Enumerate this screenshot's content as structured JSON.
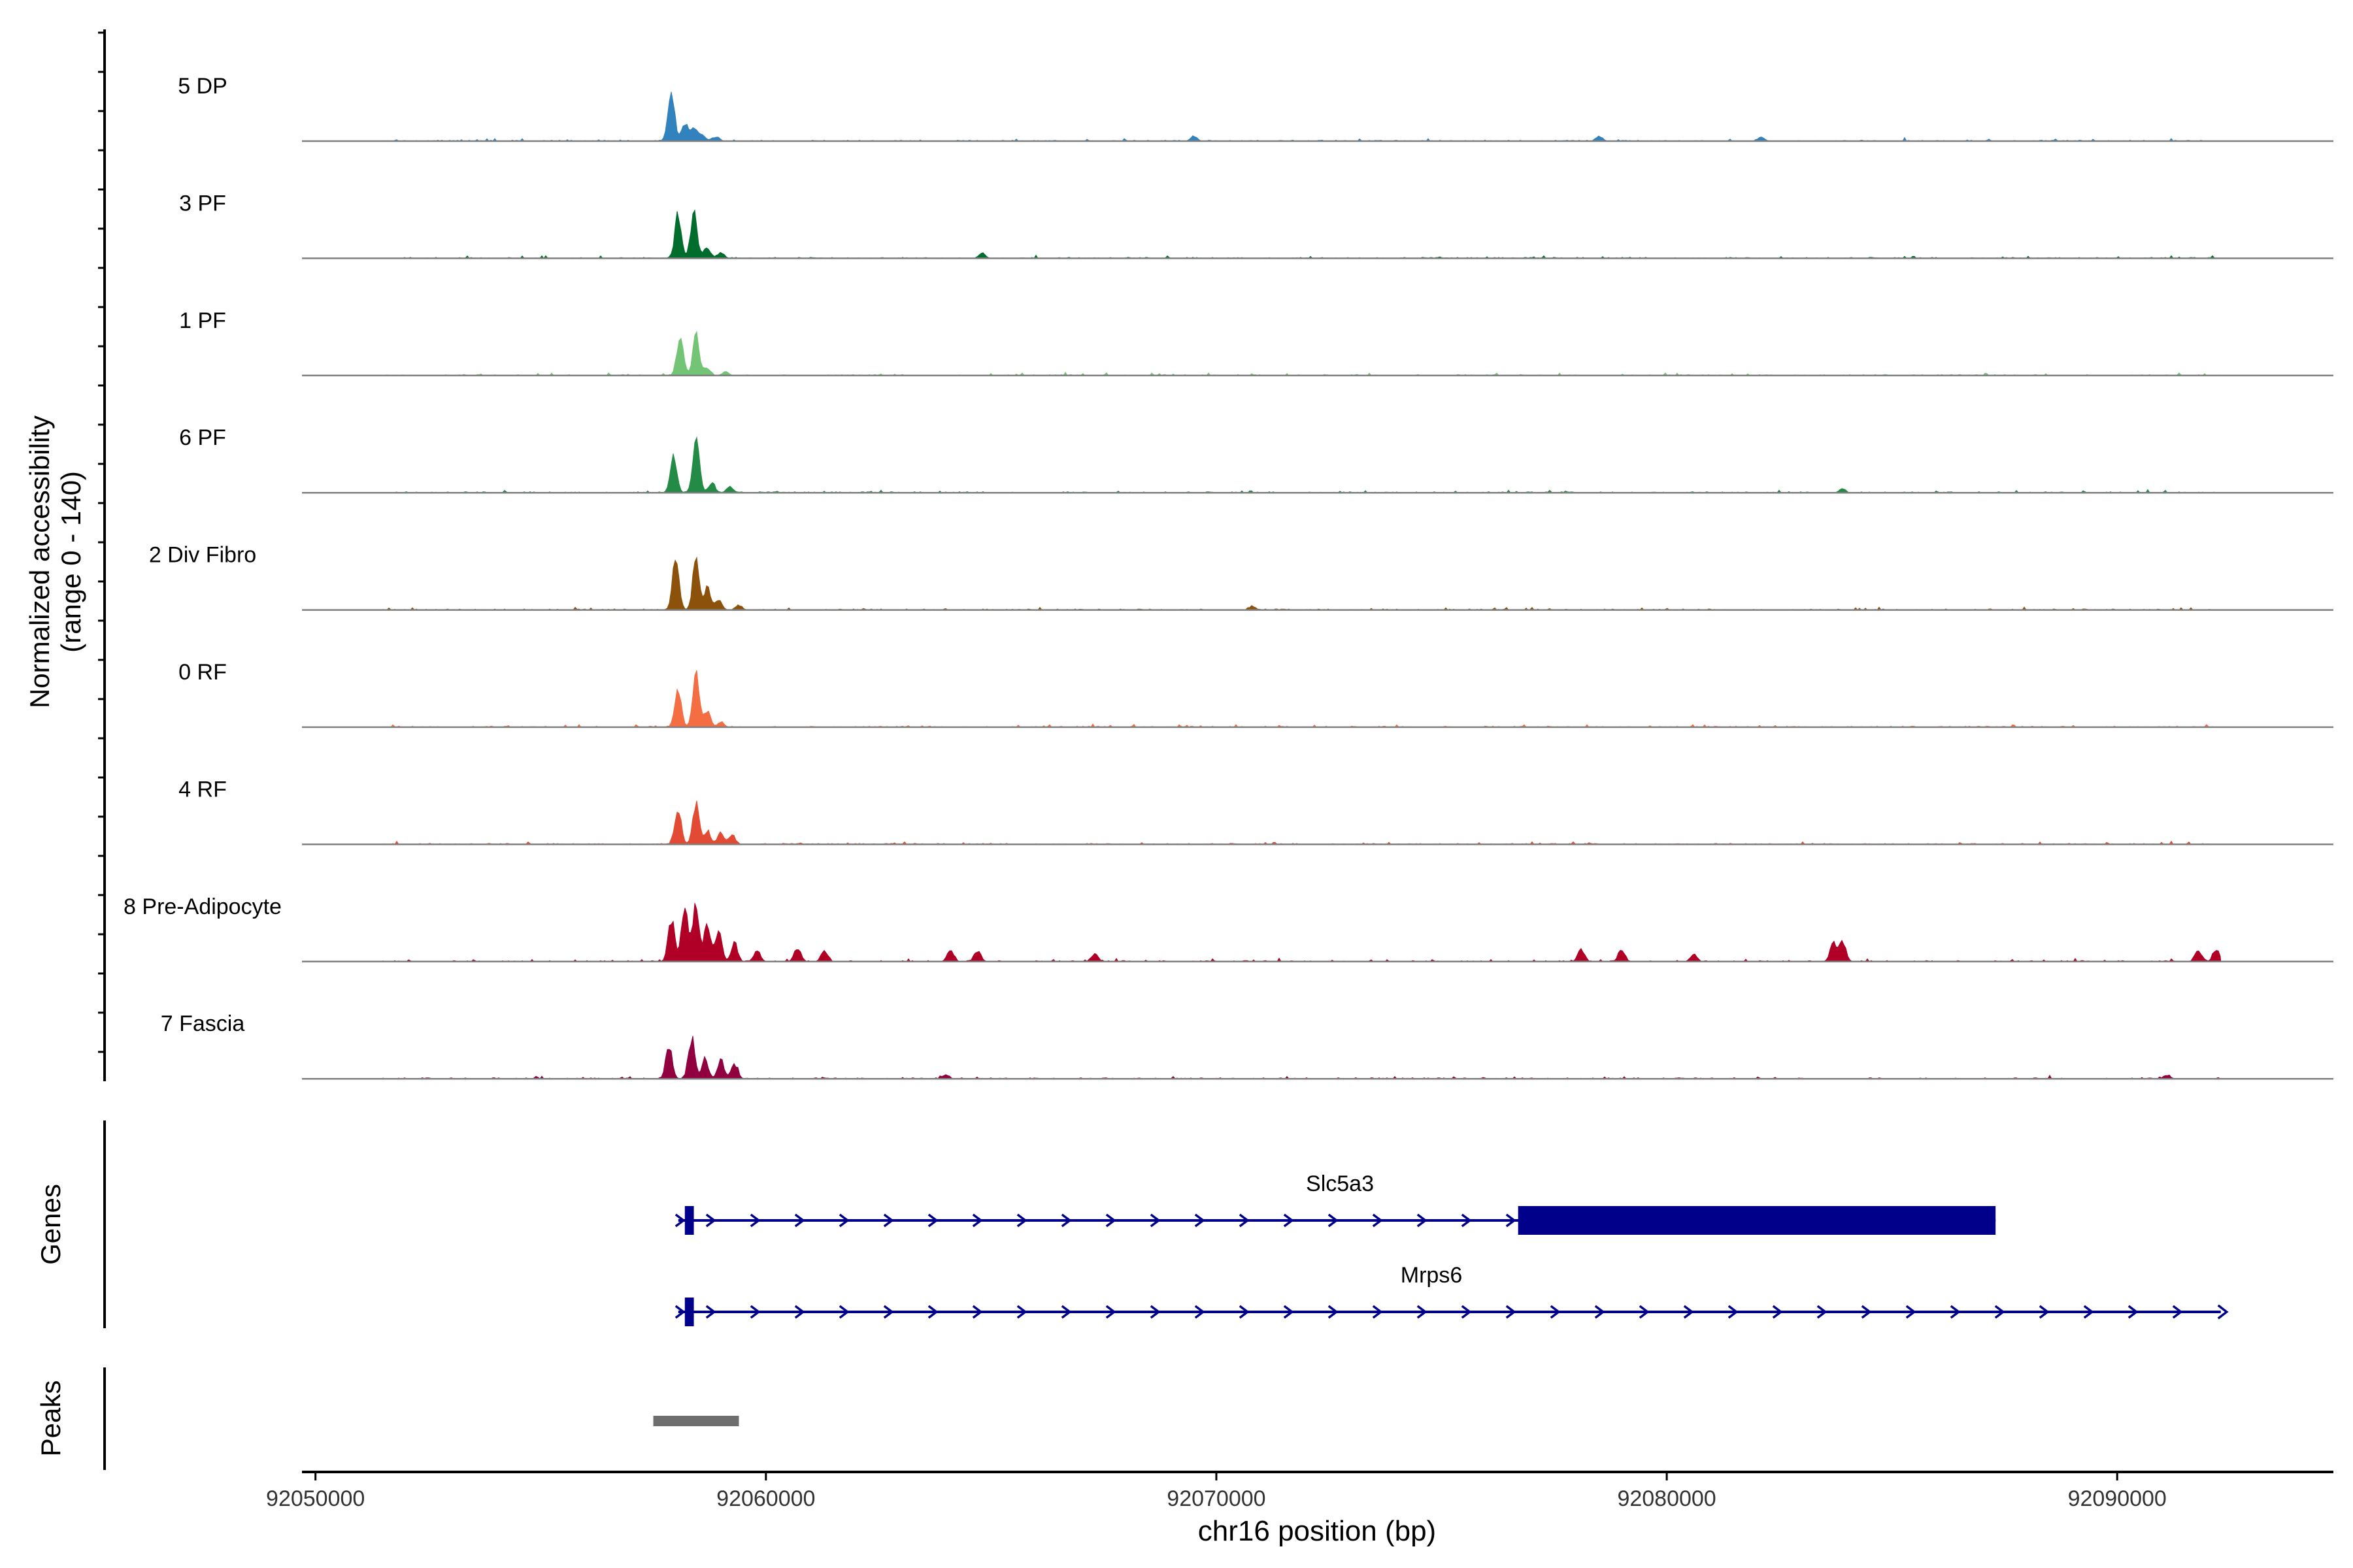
{
  "chart_data": {
    "type": "area",
    "kind": "genome-coverage-tracks",
    "y_axis_title": "Normalized accessibility",
    "y_axis_range_label": "(range 0 - 140)",
    "y_range": [
      0,
      140
    ],
    "xlabel": "chr16 position (bp)",
    "xlim": [
      92049700,
      92094800
    ],
    "x_ticks": [
      92050000,
      92060000,
      92070000,
      92080000,
      92090000
    ],
    "x_tick_labels": [
      "92050000",
      "92060000",
      "92070000",
      "92080000",
      "92090000"
    ],
    "signal_extent": [
      92051500,
      92092300
    ],
    "tracks": [
      {
        "name": "5 DP",
        "color": "#3182bd",
        "peaks": [
          [
            92057900,
            85
          ],
          [
            92058200,
            27
          ],
          [
            92058400,
            22
          ],
          [
            92058600,
            9
          ],
          [
            92058900,
            7
          ],
          [
            92069500,
            8
          ],
          [
            92078500,
            8
          ],
          [
            92082100,
            6
          ]
        ]
      },
      {
        "name": "3 PF",
        "color": "#006d2c",
        "peaks": [
          [
            92058050,
            70
          ],
          [
            92058400,
            72
          ],
          [
            92058700,
            18
          ],
          [
            92059000,
            10
          ],
          [
            92064800,
            8
          ]
        ]
      },
      {
        "name": "1 PF",
        "color": "#74c476",
        "peaks": [
          [
            92058100,
            66
          ],
          [
            92058450,
            64
          ],
          [
            92058700,
            12
          ],
          [
            92059100,
            6
          ]
        ]
      },
      {
        "name": "6 PF",
        "color": "#238b45",
        "peaks": [
          [
            92057950,
            58
          ],
          [
            92058450,
            90
          ],
          [
            92058800,
            16
          ],
          [
            92059200,
            10
          ],
          [
            92083900,
            6
          ]
        ]
      },
      {
        "name": "2 Div Fibro",
        "color": "#8c510a",
        "peaks": [
          [
            92058000,
            90
          ],
          [
            92058450,
            80
          ],
          [
            92058700,
            35
          ],
          [
            92058950,
            18
          ],
          [
            92059400,
            8
          ],
          [
            92070800,
            6
          ]
        ]
      },
      {
        "name": "0 RF",
        "color": "#f46d43",
        "peaks": [
          [
            92058050,
            64
          ],
          [
            92058450,
            88
          ],
          [
            92058700,
            25
          ],
          [
            92059000,
            8
          ]
        ]
      },
      {
        "name": "4 RF",
        "color": "#e34a33",
        "peaks": [
          [
            92058050,
            58
          ],
          [
            92058450,
            64
          ],
          [
            92058700,
            22
          ],
          [
            92059000,
            18
          ],
          [
            92059250,
            15
          ]
        ]
      },
      {
        "name": "8 Pre-Adipocyte",
        "color": "#b10026",
        "peaks": [
          [
            92057900,
            70
          ],
          [
            92058200,
            85
          ],
          [
            92058450,
            95
          ],
          [
            92058700,
            60
          ],
          [
            92058950,
            50
          ],
          [
            92059300,
            30
          ],
          [
            92059800,
            18
          ],
          [
            92060700,
            22
          ],
          [
            92061300,
            18
          ],
          [
            92064100,
            20
          ],
          [
            92064700,
            18
          ],
          [
            92067300,
            12
          ],
          [
            92078100,
            20
          ],
          [
            92079000,
            18
          ],
          [
            92080600,
            12
          ],
          [
            92083700,
            30
          ],
          [
            92083900,
            35
          ],
          [
            92091800,
            18
          ],
          [
            92092200,
            20
          ]
        ]
      },
      {
        "name": "7 Fascia",
        "color": "#91003f",
        "peaks": [
          [
            92057850,
            55
          ],
          [
            92058350,
            66
          ],
          [
            92058650,
            32
          ],
          [
            92059000,
            30
          ],
          [
            92059300,
            22
          ],
          [
            92064000,
            6
          ],
          [
            92091100,
            6
          ]
        ]
      }
    ],
    "genes_track_label": "Genes",
    "genes": [
      {
        "name": "Slc5a3",
        "start": 92058200,
        "end": 92087300,
        "strand": "+",
        "exons": [
          [
            92058200,
            92058400
          ],
          [
            92076700,
            92087300
          ]
        ]
      },
      {
        "name": "Mrps6",
        "start": 92058200,
        "end": 92092300,
        "strand": "+",
        "exons": [
          [
            92058200,
            92058400
          ]
        ]
      }
    ],
    "peaks_track_label": "Peaks",
    "peak_regions": [
      [
        92057500,
        92059400
      ]
    ],
    "colors": {
      "gene": "#00008b",
      "peak_region": "#6e6e6e",
      "baseline": "#7f7f7f",
      "axis": "#000000"
    }
  }
}
